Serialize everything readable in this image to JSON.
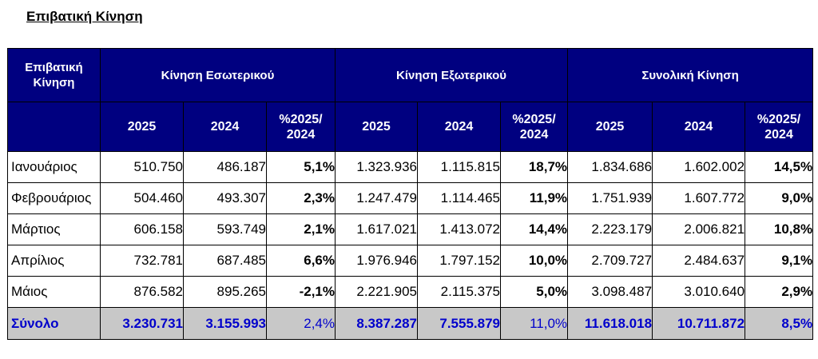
{
  "title": "Επιβατική Κίνηση",
  "header": {
    "corner_line1": "Επιβατική",
    "corner_line2": "Κίνηση",
    "groups": [
      "Κίνηση Εσωτερικού",
      "Κίνηση Εξωτερικού",
      "Συνολική Κίνηση"
    ],
    "year_current": "2025",
    "year_previous": "2024",
    "pct_line1": "%2025/",
    "pct_line2": "2024"
  },
  "rows": [
    {
      "month": "Ιανουάριος",
      "dom": [
        "510.750",
        "486.187",
        "5,1%"
      ],
      "intl": [
        "1.323.936",
        "1.115.815",
        "18,7%"
      ],
      "total": [
        "1.834.686",
        "1.602.002",
        "14,5%"
      ]
    },
    {
      "month": "Φεβρουάριος",
      "dom": [
        "504.460",
        "493.307",
        "2,3%"
      ],
      "intl": [
        "1.247.479",
        "1.114.465",
        "11,9%"
      ],
      "total": [
        "1.751.939",
        "1.607.772",
        "9,0%"
      ]
    },
    {
      "month": "Μάρτιος",
      "dom": [
        "606.158",
        "593.749",
        "2,1%"
      ],
      "intl": [
        "1.617.021",
        "1.413.072",
        "14,4%"
      ],
      "total": [
        "2.223.179",
        "2.006.821",
        "10,8%"
      ]
    },
    {
      "month": "Απρίλιος",
      "dom": [
        "732.781",
        "687.485",
        "6,6%"
      ],
      "intl": [
        "1.976.946",
        "1.797.152",
        "10,0%"
      ],
      "total": [
        "2.709.727",
        "2.484.637",
        "9,1%"
      ]
    },
    {
      "month": "Μάιος",
      "dom": [
        "876.582",
        "895.265",
        "-2,1%"
      ],
      "intl": [
        "2.221.905",
        "2.115.375",
        "5,0%"
      ],
      "total": [
        "3.098.487",
        "3.010.640",
        "2,9%"
      ]
    }
  ],
  "total_row": {
    "label": "Σύνολο",
    "dom": [
      "3.230.731",
      "3.155.993",
      "2,4%"
    ],
    "intl": [
      "8.387.287",
      "7.555.879",
      "11,0%"
    ],
    "total": [
      "11.618.018",
      "10.711.872",
      "8,5%"
    ]
  },
  "colors": {
    "header_bg": "#000080",
    "total_bg": "#c8c8c8",
    "total_text": "#0000cc"
  }
}
